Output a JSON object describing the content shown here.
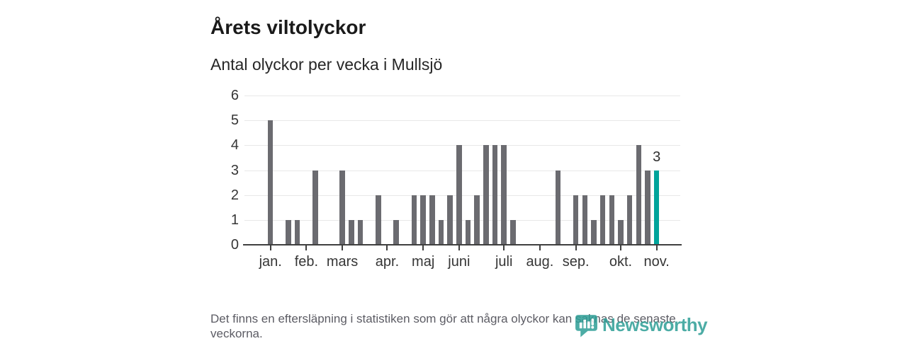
{
  "chart_data": {
    "type": "bar",
    "title": "Årets viltolyckor",
    "subtitle": "Antal olyckor per vecka i Mullsjö",
    "x_unit": "week of year (1-44)",
    "values": [
      5,
      0,
      1,
      1,
      0,
      3,
      0,
      0,
      3,
      1,
      1,
      0,
      2,
      0,
      1,
      0,
      2,
      2,
      2,
      1,
      2,
      4,
      1,
      2,
      4,
      4,
      4,
      1,
      0,
      0,
      0,
      0,
      3,
      0,
      2,
      2,
      1,
      2,
      2,
      1,
      2,
      4,
      3,
      3
    ],
    "highlight_index": 43,
    "annotation": {
      "index": 43,
      "text": "3"
    },
    "yticks": [
      0,
      1,
      2,
      3,
      4,
      5,
      6
    ],
    "ylim": [
      0,
      6
    ],
    "grid": true,
    "legend": "none",
    "months": [
      {
        "label": "jan.",
        "week": 0
      },
      {
        "label": "feb.",
        "week": 4
      },
      {
        "label": "mars",
        "week": 8
      },
      {
        "label": "apr.",
        "week": 13
      },
      {
        "label": "maj",
        "week": 17
      },
      {
        "label": "juni",
        "week": 21
      },
      {
        "label": "juli",
        "week": 26
      },
      {
        "label": "aug.",
        "week": 30
      },
      {
        "label": "sep.",
        "week": 34
      },
      {
        "label": "okt.",
        "week": 39
      },
      {
        "label": "nov.",
        "week": 43
      }
    ],
    "colors": {
      "bar": "#6b6b70",
      "highlight": "#00a49b",
      "grid": "#e8e8e8",
      "axis": "#3f3f3f"
    }
  },
  "footer": {
    "note": "Det finns en eftersläpning i statistiken som gör att några olyckor kan saknas de senaste veckorna."
  },
  "logo": {
    "name": "Newsworthy",
    "color": "#2d9e96"
  }
}
